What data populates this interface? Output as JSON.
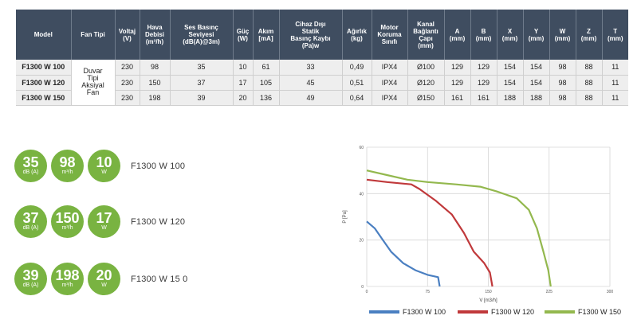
{
  "table": {
    "headers": [
      [
        "Model"
      ],
      [
        "Fan Tipi"
      ],
      [
        "Voltaj",
        "(V)"
      ],
      [
        "Hava",
        "Debisi",
        "(m³/h)"
      ],
      [
        "Ses Basınç",
        "Seviyesi",
        "(dB(A)@3m)"
      ],
      [
        "Güç",
        "(W)"
      ],
      [
        "Akım",
        "[mA]"
      ],
      [
        "Cihaz Dışı",
        "Statik",
        "Basınç Kaybı",
        "(Pa)w"
      ],
      [
        "Ağırlık",
        "(kg)"
      ],
      [
        "Motor",
        "Koruma",
        "Sınıfı"
      ],
      [
        "Kanal",
        "Bağlantı",
        "Çapı",
        "(mm)"
      ],
      [
        "A",
        "(mm)"
      ],
      [
        "B",
        "(mm)"
      ],
      [
        "X",
        "(mm)"
      ],
      [
        "Y",
        "(mm)"
      ],
      [
        "W",
        "(mm)"
      ],
      [
        "Z",
        "(mm)"
      ],
      [
        "T",
        "(mm)"
      ]
    ],
    "fan_type": [
      "Duvar",
      "Tipi",
      "Aksiyal",
      "Fan"
    ],
    "rows": [
      [
        "F1300 W 100",
        "230",
        "98",
        "35",
        "10",
        "61",
        "33",
        "0,49",
        "IPX4",
        "Ø100",
        "129",
        "129",
        "154",
        "154",
        "98",
        "88",
        "11"
      ],
      [
        "F1300 W 120",
        "230",
        "150",
        "37",
        "17",
        "105",
        "45",
        "0,51",
        "IPX4",
        "Ø120",
        "129",
        "129",
        "154",
        "154",
        "98",
        "88",
        "11"
      ],
      [
        "F1300 W 150",
        "230",
        "198",
        "39",
        "20",
        "136",
        "49",
        "0,64",
        "IPX4",
        "Ø150",
        "161",
        "161",
        "188",
        "188",
        "98",
        "88",
        "11"
      ]
    ]
  },
  "badges": [
    {
      "model": "F1300 W 100",
      "items": [
        {
          "value": "35",
          "unit": "dB (A)"
        },
        {
          "value": "98",
          "unit": "m³/h"
        },
        {
          "value": "10",
          "unit": "W"
        }
      ]
    },
    {
      "model": "F1300 W 120",
      "items": [
        {
          "value": "37",
          "unit": "dB (A)"
        },
        {
          "value": "150",
          "unit": "m³/h"
        },
        {
          "value": "17",
          "unit": "W"
        }
      ]
    },
    {
      "model": "F1300 W 15 0",
      "items": [
        {
          "value": "39",
          "unit": "dB (A)"
        },
        {
          "value": "198",
          "unit": "m³/h"
        },
        {
          "value": "20",
          "unit": "W"
        }
      ]
    }
  ],
  "colors": {
    "table_header": "#3f4d60",
    "badge": "#79b341"
  },
  "chart_data": {
    "type": "line",
    "xlabel": "V [m3/h]",
    "ylabel": "P [Pa]",
    "xlim": [
      0,
      300
    ],
    "ylim": [
      0,
      60
    ],
    "x_ticks": [
      "0",
      "75",
      "150",
      "225",
      "300"
    ],
    "y_ticks": [
      "0",
      "20",
      "40",
      "60"
    ],
    "grid": true,
    "legend_position": "bottom",
    "series": [
      {
        "name": "F1300 W 100",
        "color": "#4a7fc1",
        "points": [
          [
            0,
            28
          ],
          [
            10,
            25
          ],
          [
            20,
            20
          ],
          [
            30,
            15
          ],
          [
            45,
            10
          ],
          [
            60,
            7
          ],
          [
            75,
            5
          ],
          [
            88,
            4
          ],
          [
            90,
            0
          ]
        ]
      },
      {
        "name": "F1300 W 120",
        "color": "#c0393b",
        "points": [
          [
            0,
            46
          ],
          [
            25,
            45
          ],
          [
            55,
            44
          ],
          [
            65,
            42
          ],
          [
            85,
            37
          ],
          [
            105,
            31
          ],
          [
            120,
            23
          ],
          [
            132,
            15
          ],
          [
            145,
            10
          ],
          [
            152,
            6
          ],
          [
            155,
            0
          ]
        ]
      },
      {
        "name": "F1300 W 150",
        "color": "#93b84e",
        "points": [
          [
            0,
            50
          ],
          [
            25,
            48
          ],
          [
            50,
            46
          ],
          [
            75,
            45
          ],
          [
            110,
            44
          ],
          [
            140,
            43
          ],
          [
            160,
            41
          ],
          [
            185,
            38
          ],
          [
            200,
            33
          ],
          [
            210,
            25
          ],
          [
            218,
            15
          ],
          [
            224,
            7
          ],
          [
            227,
            0
          ]
        ]
      }
    ]
  }
}
